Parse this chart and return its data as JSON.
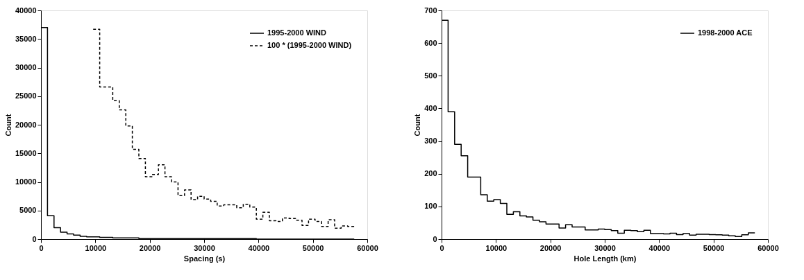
{
  "chart_data": [
    {
      "type": "step",
      "xlabel": "Spacing (s)",
      "ylabel": "Count",
      "x": [
        0,
        1200,
        2400,
        3600,
        4800,
        6000,
        7200,
        8400,
        9600,
        10800,
        12000,
        13200,
        14400,
        15600,
        16800,
        18000,
        19200,
        20400,
        21600,
        22800,
        24000,
        25200,
        26400,
        27600,
        28800,
        30000,
        31200,
        32400,
        33600,
        34800,
        36000,
        37200,
        38400,
        39600,
        40800,
        42000,
        43200,
        44400,
        45600,
        46800,
        48000,
        49200,
        50400,
        51600,
        52800,
        54000,
        55200,
        56400,
        57600
      ],
      "series": [
        {
          "name": "1995-2000 WIND",
          "color": "#000000",
          "line_style": "solid",
          "values": [
            37000,
            4100,
            2000,
            1200,
            900,
            700,
            500,
            400,
            400,
            300,
            300,
            200,
            200,
            200,
            200,
            100,
            100,
            100,
            100,
            100,
            100,
            100,
            100,
            100,
            100,
            100,
            100,
            100,
            100,
            100,
            100,
            100,
            100,
            0,
            0,
            0,
            0,
            0,
            0,
            0,
            0,
            0,
            0,
            0,
            0,
            0,
            0,
            0,
            0
          ]
        },
        {
          "name": "100 * (1995-2000 WIND)",
          "color": "#000000",
          "line_style": "dashed",
          "x": [
            9600,
            10800,
            12000,
            13200,
            14400,
            15600,
            16800,
            18000,
            19200,
            20400,
            21600,
            22800,
            24000,
            25200,
            26400,
            27600,
            28800,
            30000,
            31200,
            32400,
            33600,
            34800,
            36000,
            37200,
            38400,
            39600,
            40800,
            42000,
            43200,
            44400,
            45600,
            46800,
            48000,
            49200,
            50400,
            51600,
            52800,
            54000,
            55200,
            56400,
            57600
          ],
          "values": [
            36700,
            26600,
            26600,
            24200,
            22600,
            19800,
            15700,
            14100,
            10900,
            11300,
            13000,
            10900,
            10000,
            7600,
            8600,
            6900,
            7500,
            7000,
            6600,
            5800,
            6000,
            6000,
            5500,
            6100,
            5600,
            3500,
            4700,
            3200,
            3100,
            3700,
            3600,
            3300,
            2400,
            3500,
            3100,
            2200,
            3400,
            1900,
            2300,
            2200,
            2200
          ]
        }
      ],
      "xlim": [
        0,
        60000
      ],
      "xticks": [
        0,
        10000,
        20000,
        30000,
        40000,
        50000,
        60000
      ],
      "ylim": [
        0,
        40000
      ],
      "yticks": [
        0,
        5000,
        10000,
        15000,
        20000,
        25000,
        30000,
        35000,
        40000
      ],
      "legend": "top right",
      "grid": false
    },
    {
      "type": "step",
      "xlabel": "Hole Length (km)",
      "ylabel": "Count",
      "x": [
        0,
        1200,
        2400,
        3600,
        4800,
        6000,
        7200,
        8400,
        9600,
        10800,
        12000,
        13200,
        14400,
        15600,
        16800,
        18000,
        19200,
        20400,
        21600,
        22800,
        24000,
        25200,
        26400,
        27600,
        28800,
        30000,
        31200,
        32400,
        33600,
        34800,
        36000,
        37200,
        38400,
        39600,
        40800,
        42000,
        43200,
        44400,
        45600,
        46800,
        48000,
        49200,
        50400,
        51600,
        52800,
        54000,
        55200,
        56400,
        57600
      ],
      "series": [
        {
          "name": "1998-2000 ACE",
          "color": "#000000",
          "line_style": "solid",
          "values": [
            670,
            390,
            290,
            255,
            190,
            190,
            136,
            116,
            121,
            109,
            76,
            84,
            71,
            68,
            58,
            53,
            46,
            46,
            34,
            44,
            37,
            37,
            28,
            28,
            31,
            29,
            26,
            18,
            27,
            26,
            23,
            27,
            17,
            17,
            16,
            18,
            14,
            17,
            12,
            15,
            15,
            14,
            13,
            12,
            10,
            8,
            13,
            19,
            19
          ]
        }
      ],
      "xlim": [
        0,
        60000
      ],
      "xticks": [
        0,
        10000,
        20000,
        30000,
        40000,
        50000,
        60000
      ],
      "ylim": [
        0,
        700
      ],
      "yticks": [
        0,
        100,
        200,
        300,
        400,
        500,
        600,
        700
      ],
      "legend": "top right",
      "grid": false
    }
  ]
}
